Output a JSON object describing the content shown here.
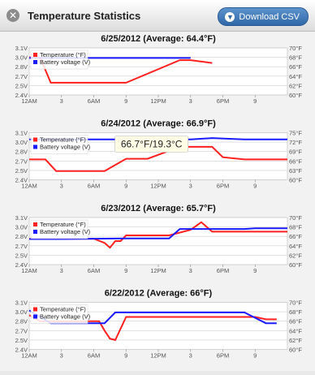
{
  "window": {
    "title": "Temperature Statistics",
    "download_label": "Download CSV",
    "close_icon": "close-icon",
    "download_icon": "chevron-down-icon"
  },
  "colors": {
    "temperature": "#ff2020",
    "battery": "#1a1aff",
    "grid": "#cfcfcf",
    "plot_bg": "#ffffff",
    "tooltip_bg": "#fffde6"
  },
  "chart_data": [
    {
      "type": "line",
      "title": "6/25/2012 (Average: 64.4°F)",
      "x_ticks": [
        "12AM",
        "3",
        "6AM",
        "9",
        "12PM",
        "3",
        "6PM",
        "9"
      ],
      "xlim": [
        0,
        24
      ],
      "y_left_ticks": [
        "2.4V",
        "2.5V",
        "2.7V",
        "2.8V",
        "3.0V",
        "3.1V"
      ],
      "y_left_lim": [
        2.4,
        3.1
      ],
      "y_right_ticks": [
        "60°F",
        "62°F",
        "64°F",
        "66°F",
        "68°F",
        "70°F"
      ],
      "y_right_lim": [
        60,
        70
      ],
      "legend": [
        "Temperature (°F)",
        "Battery voltage (V)"
      ],
      "series": [
        {
          "name": "Temperature (°F)",
          "x": [
            0,
            1,
            2,
            6,
            7,
            9,
            14,
            15,
            17
          ],
          "y": [
            68,
            68,
            62.6,
            62.6,
            62.6,
            62.6,
            67.4,
            67.4,
            66.8
          ]
        },
        {
          "name": "Battery voltage (V)",
          "x": [
            0,
            15
          ],
          "y": [
            2.95,
            2.95
          ]
        }
      ]
    },
    {
      "type": "line",
      "title": "6/24/2012 (Average: 66.9°F)",
      "x_ticks": [
        "12AM",
        "3",
        "6AM",
        "9",
        "12PM",
        "3",
        "6PM",
        "9"
      ],
      "xlim": [
        0,
        24
      ],
      "y_left_ticks": [
        "2.4V",
        "2.5V",
        "2.7V",
        "2.8V",
        "3.0V",
        "3.1V"
      ],
      "y_left_lim": [
        2.4,
        3.1
      ],
      "y_right_ticks": [
        "60°F",
        "63°F",
        "66°F",
        "69°F",
        "72°F",
        "75°F"
      ],
      "y_right_lim": [
        60,
        75
      ],
      "legend": [
        "Temperature (°F)",
        "Battery voltage (V)"
      ],
      "tooltip": "66.7°F/19.3°C",
      "series": [
        {
          "name": "Temperature (°F)",
          "x": [
            0,
            1.5,
            2.5,
            6,
            7,
            9,
            11,
            14,
            15,
            17,
            18,
            20,
            24
          ],
          "y": [
            66.5,
            66.5,
            62.8,
            62.8,
            62.8,
            66.7,
            66.7,
            70.5,
            70.5,
            70.5,
            67.2,
            66.5,
            66.5
          ]
        },
        {
          "name": "Battery voltage (V)",
          "x": [
            0,
            15,
            17,
            20,
            24
          ],
          "y": [
            3.0,
            3.0,
            3.02,
            3.0,
            3.0
          ]
        }
      ]
    },
    {
      "type": "line",
      "title": "6/23/2012 (Average: 65.7°F)",
      "x_ticks": [
        "12AM",
        "3",
        "6AM",
        "9",
        "12PM",
        "3",
        "6PM",
        "9"
      ],
      "xlim": [
        0,
        24
      ],
      "y_left_ticks": [
        "2.4V",
        "2.5V",
        "2.7V",
        "2.8V",
        "3.0V",
        "3.1V"
      ],
      "y_left_lim": [
        2.4,
        3.1
      ],
      "y_right_ticks": [
        "60°F",
        "62°F",
        "64°F",
        "66°F",
        "68°F",
        "70°F"
      ],
      "y_right_lim": [
        60,
        70
      ],
      "legend": [
        "Temperature (°F)",
        "Battery voltage (V)"
      ],
      "series": [
        {
          "name": "Temperature (°F)",
          "x": [
            0,
            4,
            6,
            7,
            7.5,
            8,
            8.5,
            9,
            11,
            13,
            15,
            16,
            17,
            24
          ],
          "y": [
            65.5,
            65.5,
            65.5,
            64.6,
            63.6,
            65,
            65,
            66.2,
            66.2,
            66.2,
            67.4,
            69,
            67,
            67
          ]
        },
        {
          "name": "Battery voltage (V)",
          "x": [
            0,
            3,
            9,
            13,
            14,
            20,
            21,
            24
          ],
          "y": [
            2.78,
            2.78,
            2.79,
            2.79,
            2.93,
            2.93,
            2.94,
            2.94
          ]
        }
      ]
    },
    {
      "type": "line",
      "title": "6/22/2012 (Average: 66°F)",
      "x_ticks": [
        "12AM",
        "3",
        "6AM",
        "9",
        "12PM",
        "3",
        "6PM",
        "9"
      ],
      "xlim": [
        0,
        24
      ],
      "y_left_ticks": [
        "2.4V",
        "2.5V",
        "2.7V",
        "2.8V",
        "3.0V",
        "3.1V"
      ],
      "y_left_lim": [
        2.4,
        3.1
      ],
      "y_right_ticks": [
        "60°F",
        "62°F",
        "64°F",
        "66°F",
        "68°F",
        "70°F"
      ],
      "y_right_lim": [
        60,
        70
      ],
      "legend": [
        "Temperature (°F)",
        "Battery voltage (V)"
      ],
      "series": [
        {
          "name": "Temperature (°F)",
          "x": [
            0,
            1,
            6,
            6.5,
            7,
            7.5,
            8,
            9,
            20,
            21,
            22,
            23
          ],
          "y": [
            67.3,
            66,
            66,
            66,
            64,
            62.3,
            62,
            66.9,
            66.9,
            66.9,
            66.4,
            66.4
          ]
        },
        {
          "name": "Battery voltage (V)",
          "x": [
            0,
            2,
            5,
            6,
            7,
            8,
            20,
            22,
            23
          ],
          "y": [
            2.98,
            2.79,
            2.79,
            2.79,
            2.79,
            2.95,
            2.95,
            2.79,
            2.79
          ]
        }
      ]
    }
  ]
}
